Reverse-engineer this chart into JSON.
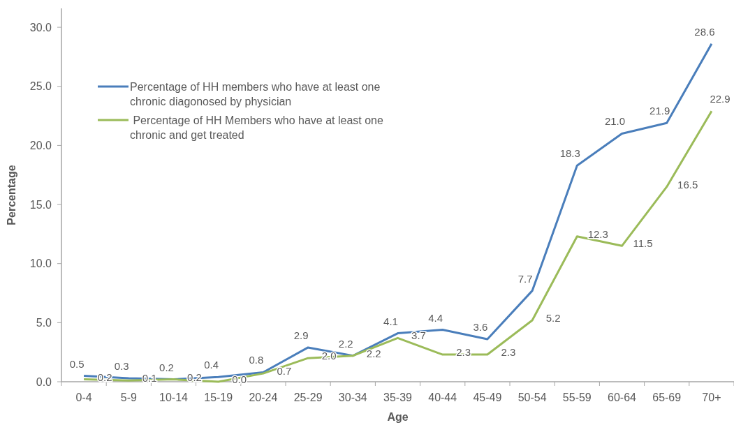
{
  "chart_data": {
    "type": "line",
    "xlabel": "Age",
    "ylabel": "Percentage",
    "categories": [
      "0-4",
      "5-9",
      "10-14",
      "15-19",
      "20-24",
      "25-29",
      "30-34",
      "35-39",
      "40-44",
      "45-49",
      "50-54",
      "55-59",
      "60-64",
      "65-69",
      "70+"
    ],
    "series": [
      {
        "name": "Percentage of HH members who have at least one chronic diagonosed by physician",
        "color": "#4a7ebb",
        "values": [
          0.5,
          0.3,
          0.2,
          0.4,
          0.8,
          2.9,
          2.2,
          4.1,
          4.4,
          3.6,
          7.7,
          18.3,
          21.0,
          21.9,
          28.6
        ],
        "value_labels": [
          "0.5",
          "0.3",
          "0.2",
          "0.4",
          "0.8",
          "2.9",
          "2.2",
          "4.1",
          "4.4",
          "3.6",
          "7.7",
          "18.3",
          "21.0",
          "21.9",
          "28.6"
        ]
      },
      {
        "name": " Percentage of HH Members who have at least one chronic and get treated",
        "color": "#9bbb59",
        "values": [
          0.2,
          0.1,
          0.2,
          0.0,
          0.7,
          2.0,
          2.2,
          3.7,
          2.3,
          2.3,
          5.2,
          12.3,
          11.5,
          16.5,
          22.9
        ],
        "value_labels": [
          "0.2",
          "0.1",
          "0.2",
          "0.0",
          "0.7",
          "2.0",
          "2.2",
          "3.7",
          "2.3",
          "2.3",
          "5.2",
          "12.3",
          "11.5",
          "16.5",
          "22.9"
        ]
      }
    ],
    "ylim": [
      0,
      31.6
    ],
    "yticks": [
      {
        "value": 0,
        "label": "0.0"
      },
      {
        "value": 5,
        "label": "5.0"
      },
      {
        "value": 10,
        "label": "10.0"
      },
      {
        "value": 15,
        "label": "15.0"
      },
      {
        "value": 20,
        "label": "20.0"
      },
      {
        "value": 25,
        "label": "25.0"
      },
      {
        "value": 30,
        "label": "30.0"
      }
    ],
    "grid": false,
    "legend": "top left",
    "marker": "none",
    "line_style": "solid"
  }
}
